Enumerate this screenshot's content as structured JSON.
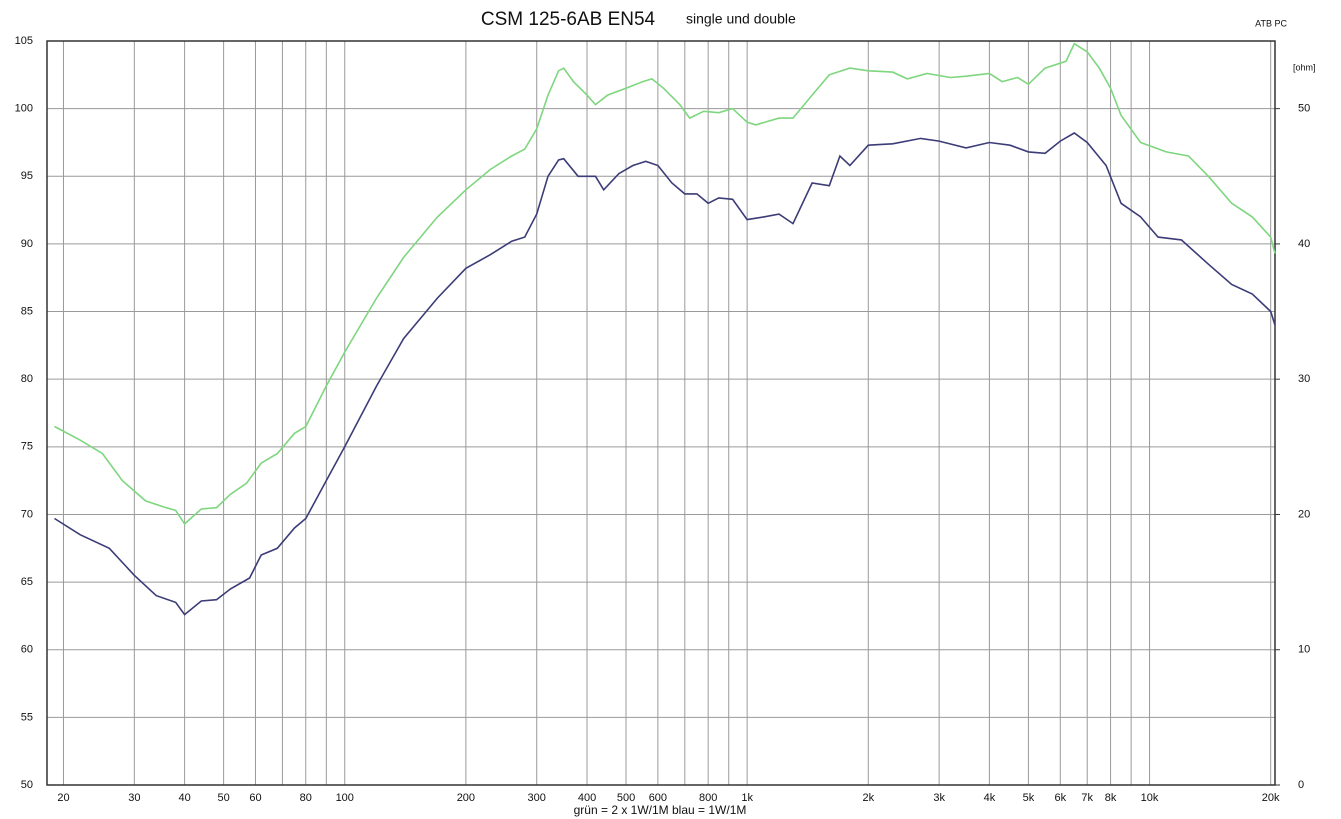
{
  "chart_data": {
    "type": "line",
    "title": "CSM 125-6AB EN54",
    "subtitle": "single und double",
    "corner_label": "ATB PC",
    "y2_label": "[ohm]",
    "x_label": "grün = 2 x 1W/1M   blau = 1W/1M",
    "xscale": "log",
    "grid": true,
    "xlim": [
      18.2,
      20500
    ],
    "xticks": [
      20,
      30,
      40,
      50,
      60,
      80,
      100,
      200,
      300,
      400,
      500,
      600,
      800,
      {
        "value": 1000,
        "label": "1k"
      },
      {
        "value": 2000,
        "label": "2k"
      },
      {
        "value": 3000,
        "label": "3k"
      },
      {
        "value": 4000,
        "label": "4k"
      },
      {
        "value": 5000,
        "label": "5k"
      },
      {
        "value": 6000,
        "label": "6k"
      },
      {
        "value": 7000,
        "label": "7k"
      },
      {
        "value": 8000,
        "label": "8k"
      },
      {
        "value": 10000,
        "label": "10k"
      },
      {
        "value": 20000,
        "label": "20k"
      }
    ],
    "x_minor_ticks": [
      70,
      90,
      700,
      900,
      9000
    ],
    "ylim": [
      50,
      105
    ],
    "yticks": [
      50,
      55,
      60,
      65,
      70,
      75,
      80,
      85,
      90,
      95,
      100,
      105
    ],
    "y2lim": [
      0,
      55
    ],
    "y2ticks": [
      0,
      10,
      20,
      30,
      40,
      50
    ],
    "series": [
      {
        "color": "#7ed67e",
        "x": [
          19,
          22,
          25,
          28,
          32,
          36,
          38,
          40,
          44,
          48,
          52,
          57,
          62,
          68,
          75,
          80,
          90,
          100,
          120,
          140,
          170,
          200,
          230,
          260,
          280,
          300,
          320,
          340,
          350,
          370,
          400,
          420,
          450,
          500,
          550,
          580,
          620,
          680,
          720,
          780,
          850,
          920,
          1000,
          1050,
          1200,
          1300,
          1450,
          1600,
          1800,
          2000,
          2300,
          2500,
          2800,
          3200,
          3500,
          4000,
          4300,
          4700,
          5000,
          5500,
          6200,
          6500,
          7000,
          7500,
          8000,
          8500,
          9500,
          11000,
          12500,
          14000,
          16000,
          18000,
          20000,
          20500
        ],
        "values": [
          76.5,
          75.5,
          74.5,
          72.5,
          71,
          70.5,
          70.3,
          69.3,
          70.4,
          70.5,
          71.5,
          72.3,
          73.8,
          74.5,
          76,
          76.5,
          79.5,
          82,
          86,
          89,
          92,
          94,
          95.5,
          96.5,
          97,
          98.5,
          101,
          102.8,
          103,
          102,
          101,
          100.3,
          101,
          101.5,
          102,
          102.2,
          101.5,
          100.3,
          99.3,
          99.8,
          99.7,
          100,
          99,
          98.8,
          99.3,
          99.3,
          101,
          102.5,
          103,
          102.8,
          102.7,
          102.2,
          102.6,
          102.3,
          102.4,
          102.6,
          102,
          102.3,
          101.8,
          103,
          103.5,
          104.8,
          104.2,
          103,
          101.5,
          99.5,
          97.5,
          96.8,
          96.5,
          95,
          93,
          92,
          90.5,
          89.3
        ]
      },
      {
        "color": "#3c3c78",
        "x": [
          19,
          22,
          26,
          30,
          34,
          38,
          40,
          44,
          48,
          52,
          58,
          62,
          68,
          75,
          80,
          90,
          100,
          120,
          140,
          170,
          200,
          230,
          260,
          280,
          300,
          320,
          340,
          350,
          380,
          420,
          440,
          480,
          520,
          560,
          600,
          650,
          700,
          750,
          800,
          850,
          920,
          1000,
          1100,
          1200,
          1300,
          1450,
          1600,
          1700,
          1800,
          2000,
          2300,
          2700,
          3000,
          3500,
          4000,
          4500,
          5000,
          5500,
          6000,
          6500,
          7000,
          7800,
          8500,
          9500,
          10500,
          12000,
          14000,
          16000,
          18000,
          20000,
          20500
        ],
        "values": [
          69.7,
          68.5,
          67.5,
          65.5,
          64,
          63.5,
          62.6,
          63.6,
          63.7,
          64.5,
          65.3,
          67,
          67.5,
          69,
          69.7,
          72.5,
          75,
          79.5,
          83,
          86,
          88.2,
          89.2,
          90.2,
          90.5,
          92.2,
          95,
          96.2,
          96.3,
          95,
          95,
          94,
          95.2,
          95.8,
          96.1,
          95.8,
          94.5,
          93.7,
          93.7,
          93,
          93.4,
          93.3,
          91.8,
          92,
          92.2,
          91.5,
          94.5,
          94.3,
          96.5,
          95.8,
          97.3,
          97.4,
          97.8,
          97.6,
          97.1,
          97.5,
          97.3,
          96.8,
          96.7,
          97.6,
          98.2,
          97.5,
          95.8,
          93,
          92,
          90.5,
          90.3,
          88.5,
          87,
          86.3,
          85,
          84
        ]
      }
    ]
  }
}
